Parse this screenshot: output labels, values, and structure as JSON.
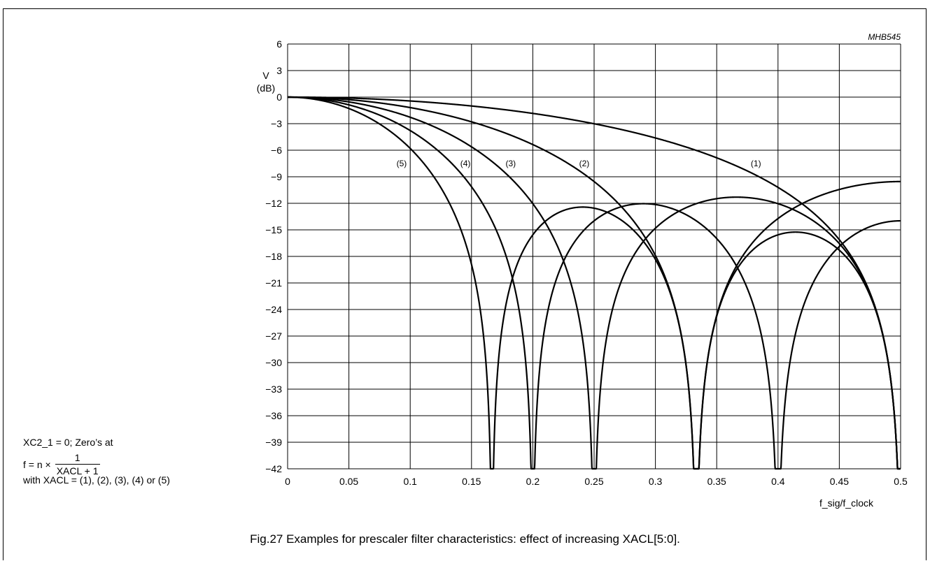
{
  "figure_code": "MHB545",
  "caption": "Fig.27  Examples for prescaler filter characteristics: effect of increasing XACL[5:0].",
  "annotation": {
    "line1": "XC2_1 = 0; Zero’s at",
    "line2_prefix": "f  =  n ×",
    "fraction_numerator": "1",
    "fraction_denominator": "XACL + 1",
    "line3": "with XACL = (1), (2), (3), (4) or (5)"
  },
  "chart_data": {
    "type": "line",
    "ylabel_line1": "V",
    "ylabel_line2": "(dB)",
    "xlabel": "f_sig/f_clock",
    "xlim": [
      0,
      0.5
    ],
    "ylim": [
      -42,
      6
    ],
    "x_ticks": [
      "0",
      "0.05",
      "0.1",
      "0.15",
      "0.2",
      "0.25",
      "0.3",
      "0.35",
      "0.4",
      "0.45",
      "0.5"
    ],
    "y_ticks": [
      "6",
      "3",
      "0",
      "−3",
      "−6",
      "−9",
      "−12",
      "−15",
      "−18",
      "−21",
      "−24",
      "−27",
      "−30",
      "−33",
      "−36",
      "−39",
      "−42"
    ],
    "grid": true,
    "series": [
      {
        "name": "(1)",
        "zeros": [
          0.5
        ],
        "label_pos": [
          0.382,
          -7.5
        ],
        "x": [
          0,
          0.05,
          0.1,
          0.15,
          0.2,
          0.25,
          0.3,
          0.35,
          0.4,
          0.45,
          0.5
        ],
        "y": [
          0,
          -0.1,
          -0.4,
          -0.9,
          -1.7,
          -2.9,
          -4.6,
          -6.9,
          -10.2,
          -15.6,
          -42
        ]
      },
      {
        "name": "(2)",
        "zeros": [
          0.333
        ],
        "label_pos": [
          0.242,
          -7.5
        ],
        "x": [
          0,
          0.05,
          0.1,
          0.15,
          0.2,
          0.25,
          0.29,
          0.333,
          0.37,
          0.4,
          0.45,
          0.5
        ],
        "y": [
          0,
          -0.3,
          -1.3,
          -3.0,
          -5.6,
          -9.5,
          -14.0,
          -42,
          -19.0,
          -15.0,
          -10.9,
          -9.5
        ]
      },
      {
        "name": "(3)",
        "zeros": [
          0.25,
          0.5
        ],
        "label_pos": [
          0.182,
          -7.5
        ],
        "x": [
          0,
          0.05,
          0.1,
          0.15,
          0.2,
          0.25,
          0.3,
          0.367,
          0.42,
          0.45,
          0.5
        ],
        "y": [
          0,
          -0.5,
          -2.3,
          -5.5,
          -11.0,
          -42,
          -13.5,
          -11.3,
          -13.7,
          -16.7,
          -42
        ]
      },
      {
        "name": "(4)",
        "zeros": [
          0.2,
          0.4
        ],
        "label_pos": [
          0.145,
          -7.5
        ],
        "x": [
          0,
          0.05,
          0.1,
          0.15,
          0.2,
          0.25,
          0.292,
          0.35,
          0.4,
          0.45,
          0.5
        ],
        "y": [
          0,
          -0.9,
          -3.6,
          -9.0,
          -42,
          -16.0,
          -12.0,
          -14.5,
          -42,
          -16.0,
          -14.0
        ]
      },
      {
        "name": "(5)",
        "zeros": [
          0.1667,
          0.3333,
          0.5
        ],
        "label_pos": [
          0.093,
          -7.5
        ],
        "x": [
          0,
          0.05,
          0.1,
          0.1667,
          0.25,
          0.3333,
          0.4167,
          0.5
        ],
        "y": [
          0,
          -1.6,
          -7.0,
          -42,
          -13.5,
          -42,
          -17.5,
          -42
        ]
      }
    ],
    "curves_visual": {
      "note": "filter responses rendered as |sin(pi*N*x)/(N*sin(pi*x))| with N = 2..6",
      "orders": [
        2,
        3,
        4,
        5,
        6
      ]
    }
  }
}
